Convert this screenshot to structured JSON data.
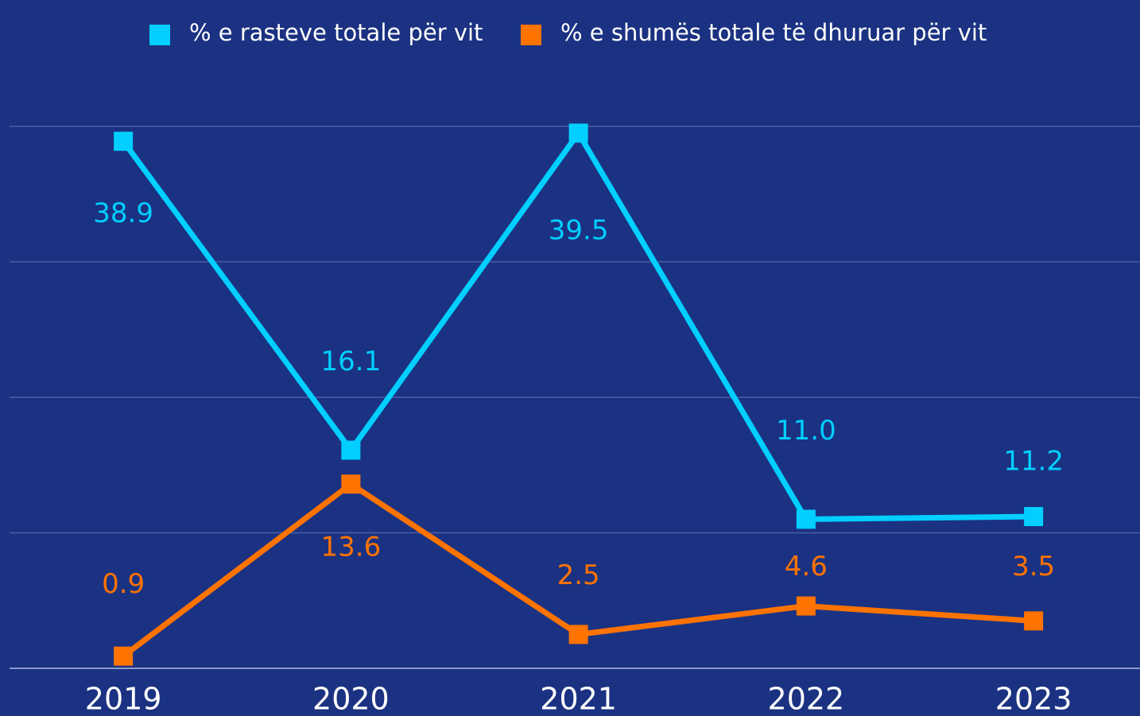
{
  "chart_data": {
    "type": "line",
    "categories": [
      "2019",
      "2020",
      "2021",
      "2022",
      "2023"
    ],
    "series": [
      {
        "name": "% e rasteve totale për vit",
        "color": "#00cfff",
        "values": [
          38.9,
          16.1,
          39.5,
          11.0,
          11.2
        ],
        "value_labels": [
          "38.9",
          "16.1",
          "39.5",
          "11.0",
          "11.2"
        ]
      },
      {
        "name": "% e shumës totale të dhuruar për vit",
        "color": "#ff7300",
        "values": [
          0.9,
          13.6,
          2.5,
          4.6,
          3.5
        ]
      }
    ],
    "ylim": [
      0,
      40
    ],
    "yticks": [
      0,
      10,
      20,
      30,
      40
    ],
    "grid": true,
    "legend": "top"
  }
}
